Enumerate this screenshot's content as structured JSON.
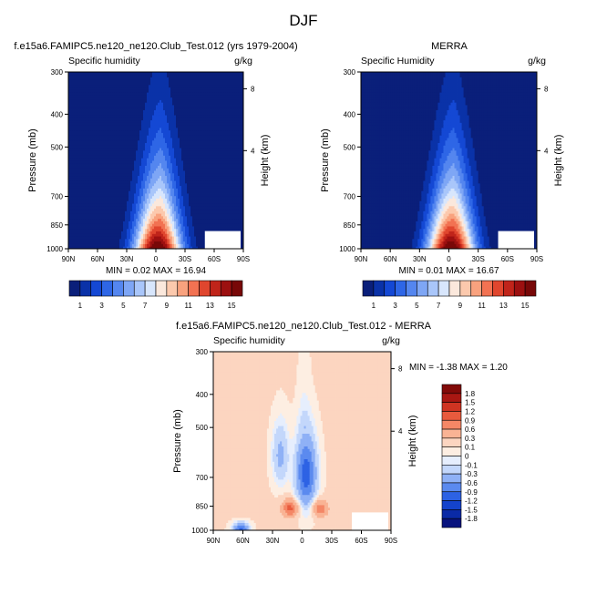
{
  "figure_title": "DJF",
  "palettes": {
    "full": [
      "#0a1f7a",
      "#0a32a8",
      "#1448d4",
      "#2e66e6",
      "#5486ef",
      "#7ea6f5",
      "#a9c6fa",
      "#d8e6fc",
      "#fbe8dc",
      "#fcc9ad",
      "#f9a27e",
      "#f27252",
      "#e0462e",
      "#c0241a",
      "#9c1010",
      "#780808"
    ],
    "diff": [
      "#08137e",
      "#0a2aa6",
      "#1443cc",
      "#2d62e4",
      "#5b8aef",
      "#8fb1f6",
      "#c3d7fb",
      "#e6eefd",
      "#fdeee2",
      "#fcd5c0",
      "#f9b394",
      "#f48766",
      "#e85a3d",
      "#cf3422",
      "#a91712",
      "#820a08"
    ]
  },
  "chart_data": [
    {
      "type": "heatmap",
      "id": "model",
      "title": "f.e15a6.FAMIPC5.ne120_ne120.Club_Test.012 (yrs 1979-2004)",
      "left_label": "Specific humidity",
      "right_label": "g/kg",
      "ylabel": "Pressure (mb)",
      "y2label": "Height (km)",
      "xticks": [
        "90N",
        "60N",
        "30N",
        "0",
        "30S",
        "60S",
        "90S"
      ],
      "yticks": [
        300,
        400,
        500,
        700,
        850,
        1000
      ],
      "y2ticks": [
        8,
        4
      ],
      "ylim": [
        1000,
        300
      ],
      "min_max_text": "MIN =  0.02   MAX =  16.94",
      "colorbar_labels": [
        "1",
        "3",
        "5",
        "7",
        "9",
        "11",
        "13",
        "15"
      ],
      "x": [
        "90N",
        "60N",
        "30N",
        "0",
        "30S",
        "60S",
        "90S"
      ],
      "y": [
        1000,
        850,
        700,
        500,
        400,
        300
      ],
      "z": [
        [
          0.5,
          3.5,
          11,
          16.5,
          12,
          4.5,
          0.8
        ],
        [
          0.3,
          2.5,
          8,
          12.5,
          9,
          3.5,
          0.5
        ],
        [
          0.15,
          1.5,
          4.5,
          7,
          5,
          2,
          0.3
        ],
        [
          0.05,
          0.4,
          1.5,
          2.5,
          1.8,
          0.6,
          0.1
        ],
        [
          0.02,
          0.15,
          0.5,
          1,
          0.7,
          0.2,
          0.05
        ],
        [
          0.02,
          0.05,
          0.1,
          0.3,
          0.2,
          0.05,
          0.02
        ]
      ]
    },
    {
      "type": "heatmap",
      "id": "obs",
      "title": "MERRA",
      "left_label": "Specific Humidity",
      "right_label": "g/kg",
      "ylabel": "Pressure (mb)",
      "y2label": "Height (km)",
      "xticks": [
        "90N",
        "60N",
        "30N",
        "0",
        "30S",
        "60S",
        "90S"
      ],
      "yticks": [
        300,
        400,
        500,
        700,
        850,
        1000
      ],
      "y2ticks": [
        8,
        4
      ],
      "ylim": [
        1000,
        300
      ],
      "min_max_text": "MIN =  0.01   MAX =  16.67",
      "colorbar_labels": [
        "1",
        "3",
        "5",
        "7",
        "9",
        "11",
        "13",
        "15"
      ],
      "x": [
        "90N",
        "60N",
        "30N",
        "0",
        "30S",
        "60S",
        "90S"
      ],
      "y": [
        1000,
        850,
        700,
        500,
        400,
        300
      ],
      "z": [
        [
          0.5,
          3.5,
          11,
          16.5,
          12,
          4.5,
          0.8
        ],
        [
          0.3,
          2.5,
          8,
          12.5,
          9,
          3.5,
          0.5
        ],
        [
          0.15,
          1.5,
          4.5,
          7,
          5,
          2,
          0.3
        ],
        [
          0.05,
          0.4,
          1.5,
          2.5,
          1.8,
          0.6,
          0.1
        ],
        [
          0.02,
          0.15,
          0.5,
          1,
          0.7,
          0.2,
          0.05
        ],
        [
          0.01,
          0.05,
          0.1,
          0.3,
          0.2,
          0.05,
          0.01
        ]
      ]
    },
    {
      "type": "heatmap",
      "id": "diff",
      "title": "f.e15a6.FAMIPC5.ne120_ne120.Club_Test.012 - MERRA",
      "left_label": "Specific humidity",
      "right_label": "g/kg",
      "ylabel": "Pressure (mb)",
      "y2label": "Height (km)",
      "xticks": [
        "90N",
        "60N",
        "30N",
        "0",
        "30S",
        "60S",
        "90S"
      ],
      "yticks": [
        300,
        400,
        500,
        700,
        850,
        1000
      ],
      "y2ticks": [
        8,
        4
      ],
      "ylim": [
        1000,
        300
      ],
      "min_max_text": "MIN = -1.38   MAX =  1.20",
      "colorbar_labels": [
        "1.8",
        "1.5",
        "1.2",
        "0.9",
        "0.6",
        "0.3",
        "0.1",
        "0",
        "-0.1",
        "-0.3",
        "-0.6",
        "-0.9",
        "-1.2",
        "-1.5",
        "-1.8"
      ],
      "x": [
        "90N",
        "60N",
        "30N",
        "0",
        "30S",
        "60S",
        "90S"
      ],
      "y": [
        1000,
        850,
        700,
        500,
        400,
        300
      ],
      "z": [
        [
          0.1,
          -1.2,
          0.4,
          0.0,
          0.3,
          0.2,
          0.1
        ],
        [
          0.1,
          0.3,
          0.9,
          -0.3,
          0.8,
          0.3,
          0.1
        ],
        [
          0.05,
          0.1,
          0.3,
          -1.1,
          0.2,
          0.1,
          0.05
        ],
        [
          0.05,
          0.05,
          -0.2,
          -0.8,
          -0.3,
          0.05,
          0.05
        ],
        [
          0.05,
          0.05,
          0.05,
          -0.4,
          -0.1,
          0.05,
          0.05
        ],
        [
          0.05,
          0.05,
          0.05,
          -0.1,
          0.05,
          0.05,
          0.05
        ]
      ]
    }
  ]
}
